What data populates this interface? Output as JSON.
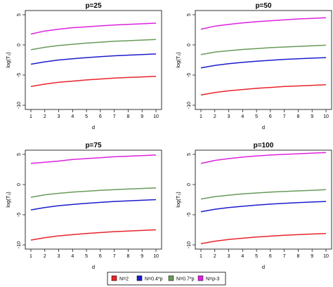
{
  "chart_data": [
    {
      "type": "line",
      "title": "p=25",
      "xlabel": "d",
      "ylabel": "log(T₂)",
      "x": [
        1,
        2,
        3,
        4,
        5,
        6,
        7,
        8,
        9,
        10
      ],
      "xlim": [
        1,
        10
      ],
      "ylim": [
        -10,
        5
      ],
      "yticks": [
        -10,
        -5,
        0,
        5
      ],
      "series": [
        {
          "name": "N=2",
          "color": "#e8242a",
          "values": [
            -6.9,
            -6.5,
            -6.2,
            -6.0,
            -5.8,
            -5.65,
            -5.5,
            -5.4,
            -5.3,
            -5.2
          ]
        },
        {
          "name": "N=0.4*p",
          "color": "#1c1ccd",
          "values": [
            -3.2,
            -2.8,
            -2.5,
            -2.3,
            -2.1,
            -1.95,
            -1.8,
            -1.7,
            -1.6,
            -1.5
          ]
        },
        {
          "name": "N=0.7*p",
          "color": "#6a9a58",
          "values": [
            -0.8,
            -0.4,
            -0.1,
            0.1,
            0.3,
            0.45,
            0.6,
            0.7,
            0.8,
            0.9
          ]
        },
        {
          "name": "N=p-3",
          "color": "#dd22dd",
          "values": [
            1.8,
            2.3,
            2.6,
            2.85,
            3.0,
            3.15,
            3.3,
            3.4,
            3.5,
            3.6
          ]
        }
      ]
    },
    {
      "type": "line",
      "title": "p=50",
      "xlabel": "d",
      "ylabel": "log(T₂)",
      "x": [
        1,
        2,
        3,
        4,
        5,
        6,
        7,
        8,
        9,
        10
      ],
      "xlim": [
        1,
        10
      ],
      "ylim": [
        -10,
        5
      ],
      "yticks": [
        -10,
        -5,
        0,
        5
      ],
      "series": [
        {
          "name": "N=2",
          "color": "#e8242a",
          "values": [
            -8.3,
            -7.9,
            -7.6,
            -7.4,
            -7.2,
            -7.05,
            -6.9,
            -6.8,
            -6.7,
            -6.6
          ]
        },
        {
          "name": "N=0.4*p",
          "color": "#1c1ccd",
          "values": [
            -3.8,
            -3.4,
            -3.1,
            -2.9,
            -2.7,
            -2.55,
            -2.4,
            -2.3,
            -2.2,
            -2.1
          ]
        },
        {
          "name": "N=0.7*p",
          "color": "#6a9a58",
          "values": [
            -1.6,
            -1.2,
            -0.95,
            -0.75,
            -0.6,
            -0.45,
            -0.35,
            -0.25,
            -0.15,
            -0.05
          ]
        },
        {
          "name": "N=p-3",
          "color": "#dd22dd",
          "values": [
            2.6,
            3.1,
            3.4,
            3.65,
            3.85,
            4.0,
            4.15,
            4.3,
            4.4,
            4.5
          ]
        }
      ]
    },
    {
      "type": "line",
      "title": "p=75",
      "xlabel": "d",
      "ylabel": "log(T₂)",
      "x": [
        1,
        2,
        3,
        4,
        5,
        6,
        7,
        8,
        9,
        10
      ],
      "xlim": [
        1,
        10
      ],
      "ylim": [
        -10,
        5
      ],
      "yticks": [
        -10,
        -5,
        0,
        5
      ],
      "series": [
        {
          "name": "N=2",
          "color": "#e8242a",
          "values": [
            -9.2,
            -8.8,
            -8.5,
            -8.3,
            -8.1,
            -7.95,
            -7.8,
            -7.7,
            -7.6,
            -7.5
          ]
        },
        {
          "name": "N=0.4*p",
          "color": "#1c1ccd",
          "values": [
            -4.2,
            -3.8,
            -3.5,
            -3.3,
            -3.1,
            -2.95,
            -2.8,
            -2.7,
            -2.6,
            -2.5
          ]
        },
        {
          "name": "N=0.7*p",
          "color": "#6a9a58",
          "values": [
            -2.1,
            -1.7,
            -1.45,
            -1.25,
            -1.1,
            -0.95,
            -0.85,
            -0.75,
            -0.65,
            -0.55
          ]
        },
        {
          "name": "N=p-3",
          "color": "#dd22dd",
          "values": [
            3.5,
            3.7,
            3.9,
            4.15,
            4.3,
            4.45,
            4.6,
            4.7,
            4.8,
            4.9
          ]
        }
      ]
    },
    {
      "type": "line",
      "title": "p=100",
      "xlabel": "d",
      "ylabel": "log(T₂)",
      "x": [
        1,
        2,
        3,
        4,
        5,
        6,
        7,
        8,
        9,
        10
      ],
      "xlim": [
        1,
        10
      ],
      "ylim": [
        -10,
        5
      ],
      "yticks": [
        -10,
        -5,
        0,
        5
      ],
      "series": [
        {
          "name": "N=2",
          "color": "#e8242a",
          "values": [
            -9.8,
            -9.4,
            -9.1,
            -8.9,
            -8.7,
            -8.55,
            -8.4,
            -8.3,
            -8.2,
            -8.1
          ]
        },
        {
          "name": "N=0.4*p",
          "color": "#1c1ccd",
          "values": [
            -4.5,
            -4.1,
            -3.8,
            -3.6,
            -3.4,
            -3.25,
            -3.1,
            -3.0,
            -2.9,
            -2.8
          ]
        },
        {
          "name": "N=0.7*p",
          "color": "#6a9a58",
          "values": [
            -2.4,
            -2.0,
            -1.75,
            -1.55,
            -1.4,
            -1.25,
            -1.15,
            -1.05,
            -0.95,
            -0.85
          ]
        },
        {
          "name": "N=p-3",
          "color": "#dd22dd",
          "values": [
            3.5,
            4.0,
            4.3,
            4.55,
            4.75,
            4.9,
            5.0,
            5.1,
            5.2,
            5.3
          ]
        }
      ]
    }
  ],
  "legend": {
    "placement": "bottom",
    "items": [
      {
        "label": "N=2",
        "color": "#e8242a"
      },
      {
        "label": "N=0.4*p",
        "color": "#1c1ccd"
      },
      {
        "label": "N=0.7*p",
        "color": "#6a9a58"
      },
      {
        "label": "N=p-3",
        "color": "#dd22dd"
      }
    ]
  }
}
